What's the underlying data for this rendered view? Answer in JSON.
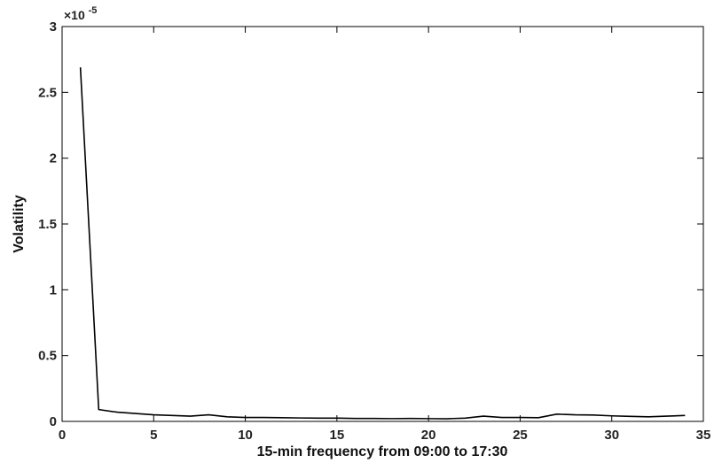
{
  "chart_data": {
    "type": "line",
    "title": "",
    "xlabel": "15-min frequency from 09:00 to 17:30",
    "ylabel": "Volatility",
    "y_multiplier_base": "×10",
    "y_multiplier_exponent": "-5",
    "xlim": [
      0,
      35
    ],
    "ylim": [
      0,
      3
    ],
    "x_ticks": [
      0,
      5,
      10,
      15,
      20,
      25,
      30,
      35
    ],
    "y_ticks": [
      0,
      0.5,
      1,
      1.5,
      2,
      2.5,
      3
    ],
    "grid": false,
    "series": [
      {
        "x": [
          1,
          2,
          3,
          4,
          5,
          6,
          7,
          8,
          9,
          10,
          11,
          12,
          13,
          14,
          15,
          16,
          17,
          18,
          19,
          20,
          21,
          22,
          23,
          24,
          25,
          26,
          27,
          28,
          29,
          30,
          31,
          32,
          33,
          34
        ],
        "values": [
          2.69,
          0.09,
          0.07,
          0.06,
          0.05,
          0.045,
          0.04,
          0.05,
          0.035,
          0.03,
          0.03,
          0.028,
          0.026,
          0.025,
          0.025,
          0.022,
          0.022,
          0.021,
          0.022,
          0.021,
          0.02,
          0.025,
          0.04,
          0.03,
          0.03,
          0.028,
          0.055,
          0.05,
          0.048,
          0.042,
          0.038,
          0.035,
          0.04,
          0.045
        ],
        "color": "#000000"
      }
    ]
  }
}
